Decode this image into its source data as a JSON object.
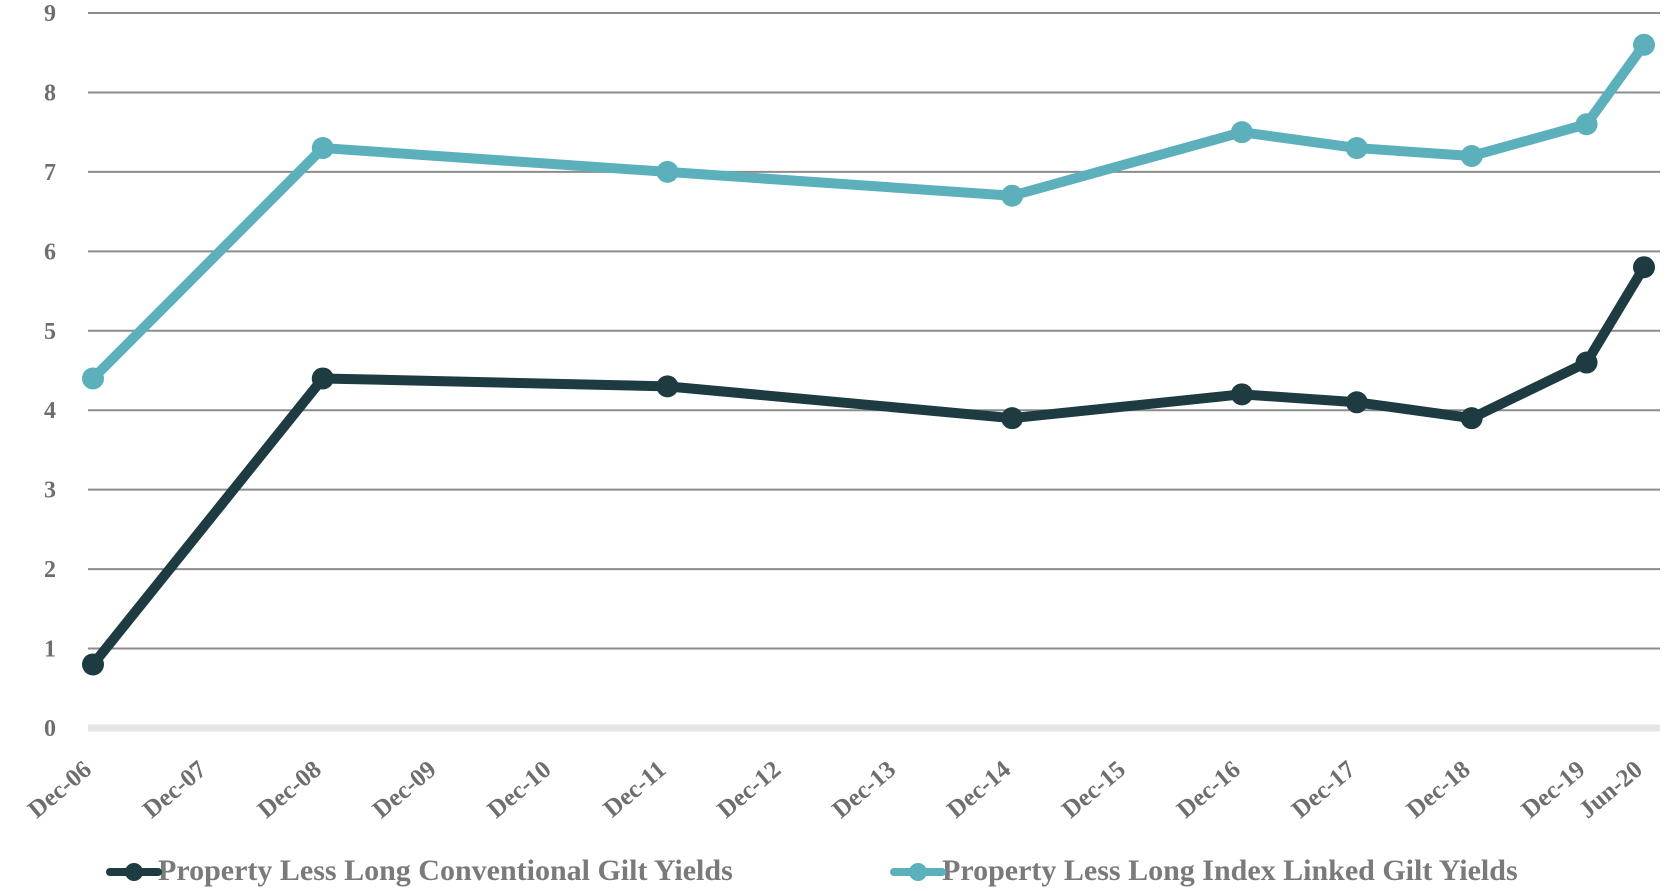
{
  "chart_data": {
    "type": "line",
    "title": "",
    "xlabel": "",
    "ylabel": "",
    "ylim": [
      0,
      9
    ],
    "yticks": [
      "0",
      "1",
      "2",
      "3",
      "4",
      "5",
      "6",
      "7",
      "8",
      "9"
    ],
    "categories": [
      "Dec-06",
      "Dec-07",
      "Dec-08",
      "Dec-09",
      "Dec-10",
      "Dec-11",
      "Dec-12",
      "Dec-13",
      "Dec-14",
      "Dec-15",
      "Dec-16",
      "Dec-17",
      "Dec-18",
      "Dec-19",
      "Jun-20"
    ],
    "grid": true,
    "legend_position": "bottom",
    "series": [
      {
        "name": "Property Less Long Conventional Gilt Yields",
        "color": "#1d3b40",
        "values": [
          0.8,
          null,
          4.4,
          null,
          null,
          4.3,
          null,
          null,
          3.9,
          null,
          4.2,
          4.1,
          3.9,
          4.6,
          5.8
        ]
      },
      {
        "name": "Property Less Long Index Linked Gilt Yields",
        "color": "#5bb0bb",
        "values": [
          4.4,
          null,
          7.3,
          null,
          null,
          7.0,
          null,
          null,
          6.7,
          null,
          7.5,
          7.3,
          7.2,
          7.6,
          8.6
        ]
      }
    ]
  }
}
